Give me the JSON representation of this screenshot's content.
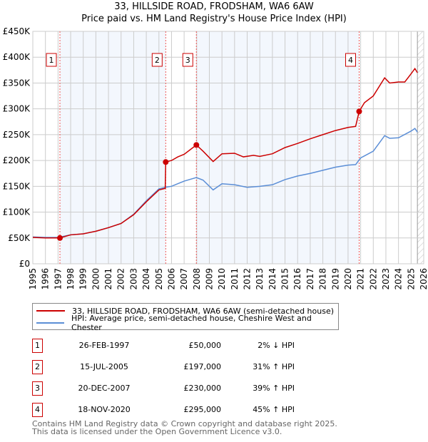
{
  "chart_data": {
    "type": "line",
    "title": "33, HILLSIDE ROAD, FRODSHAM, WA6 6AW",
    "subtitle": "Price paid vs. HM Land Registry's House Price Index (HPI)",
    "xlim": [
      1995,
      2026
    ],
    "ylim": [
      0,
      450000
    ],
    "y_ticks": [
      {
        "v": 0,
        "label": "£0"
      },
      {
        "v": 50000,
        "label": "£50K"
      },
      {
        "v": 100000,
        "label": "£100K"
      },
      {
        "v": 150000,
        "label": "£150K"
      },
      {
        "v": 200000,
        "label": "£200K"
      },
      {
        "v": 250000,
        "label": "£250K"
      },
      {
        "v": 300000,
        "label": "£300K"
      },
      {
        "v": 350000,
        "label": "£350K"
      },
      {
        "v": 400000,
        "label": "£400K"
      },
      {
        "v": 450000,
        "label": "£450K"
      }
    ],
    "x_ticks": [
      "1995",
      "1996",
      "1997",
      "1998",
      "1999",
      "2000",
      "2001",
      "2002",
      "2003",
      "2004",
      "2005",
      "2006",
      "2007",
      "2008",
      "2009",
      "2010",
      "2011",
      "2012",
      "2013",
      "2014",
      "2015",
      "2016",
      "2017",
      "2018",
      "2019",
      "2020",
      "2021",
      "2022",
      "2023",
      "2024",
      "2025",
      "2026"
    ],
    "grid": true,
    "forecast_from": 2025.5,
    "series": [
      {
        "name": "33, HILLSIDE ROAD, FRODSHAM, WA6 6AW (semi-detached house)",
        "color": "#cc0000",
        "x": [
          1995,
          1996,
          1997.15,
          1998,
          1999,
          2000,
          2001,
          2002,
          2003,
          2004,
          2005,
          2005.5,
          2005.54,
          2006,
          2006.5,
          2007,
          2007.97,
          2008.5,
          2009.3,
          2010,
          2011,
          2011.7,
          2012.5,
          2013,
          2014,
          2015,
          2016,
          2017,
          2018,
          2019,
          2020,
          2020.6,
          2020.88,
          2021.3,
          2022,
          2022.9,
          2023.3,
          2024,
          2024.5,
          2025,
          2025.3,
          2025.5
        ],
        "y": [
          51000,
          50000,
          50000,
          56000,
          58000,
          63000,
          70000,
          78000,
          95000,
          120000,
          143000,
          146000,
          197000,
          200000,
          207000,
          212000,
          230000,
          218000,
          198000,
          213000,
          214000,
          207000,
          210000,
          208000,
          213000,
          225000,
          233000,
          242000,
          250000,
          258000,
          264000,
          266000,
          295000,
          312000,
          325000,
          360000,
          350000,
          352000,
          352000,
          368000,
          378000,
          370000
        ]
      },
      {
        "name": "HPI: Average price, semi-detached house, Cheshire West and Chester",
        "color": "#5b8ed6",
        "x": [
          1995,
          1996,
          1997,
          1998,
          1999,
          2000,
          2001,
          2002,
          2003,
          2004,
          2005,
          2005.5,
          2006,
          2007,
          2007.97,
          2008.5,
          2009.3,
          2010,
          2011,
          2012,
          2013,
          2014,
          2015,
          2016,
          2017,
          2018,
          2019,
          2020,
          2020.6,
          2021,
          2022,
          2022.9,
          2023.3,
          2024,
          2025,
          2025.3,
          2025.5
        ],
        "y": [
          52000,
          51000,
          51000,
          56000,
          58000,
          63000,
          70000,
          78000,
          96000,
          122000,
          145000,
          148000,
          150000,
          160000,
          167000,
          162000,
          143000,
          155000,
          153000,
          148000,
          150000,
          153000,
          163000,
          170000,
          175000,
          181000,
          187000,
          191000,
          192000,
          205000,
          218000,
          248000,
          243000,
          244000,
          257000,
          262000,
          255000
        ]
      }
    ],
    "sales": [
      {
        "id": "1",
        "x": 1997.15,
        "y": 50000,
        "date": "26-FEB-1997",
        "price": "£50,000",
        "hpi": "2% ↓ HPI"
      },
      {
        "id": "2",
        "x": 2005.54,
        "y": 197000,
        "date": "15-JUL-2005",
        "price": "£197,000",
        "hpi": "31% ↑ HPI"
      },
      {
        "id": "3",
        "x": 2007.97,
        "y": 230000,
        "date": "20-DEC-2007",
        "price": "£230,000",
        "hpi": "39% ↑ HPI"
      },
      {
        "id": "4",
        "x": 2020.88,
        "y": 295000,
        "date": "18-NOV-2020",
        "price": "£295,000",
        "hpi": "45% ↑ HPI"
      }
    ]
  },
  "footer": {
    "line1": "Contains HM Land Registry data © Crown copyright and database right 2025.",
    "line2": "This data is licensed under the Open Government Licence v3.0."
  }
}
